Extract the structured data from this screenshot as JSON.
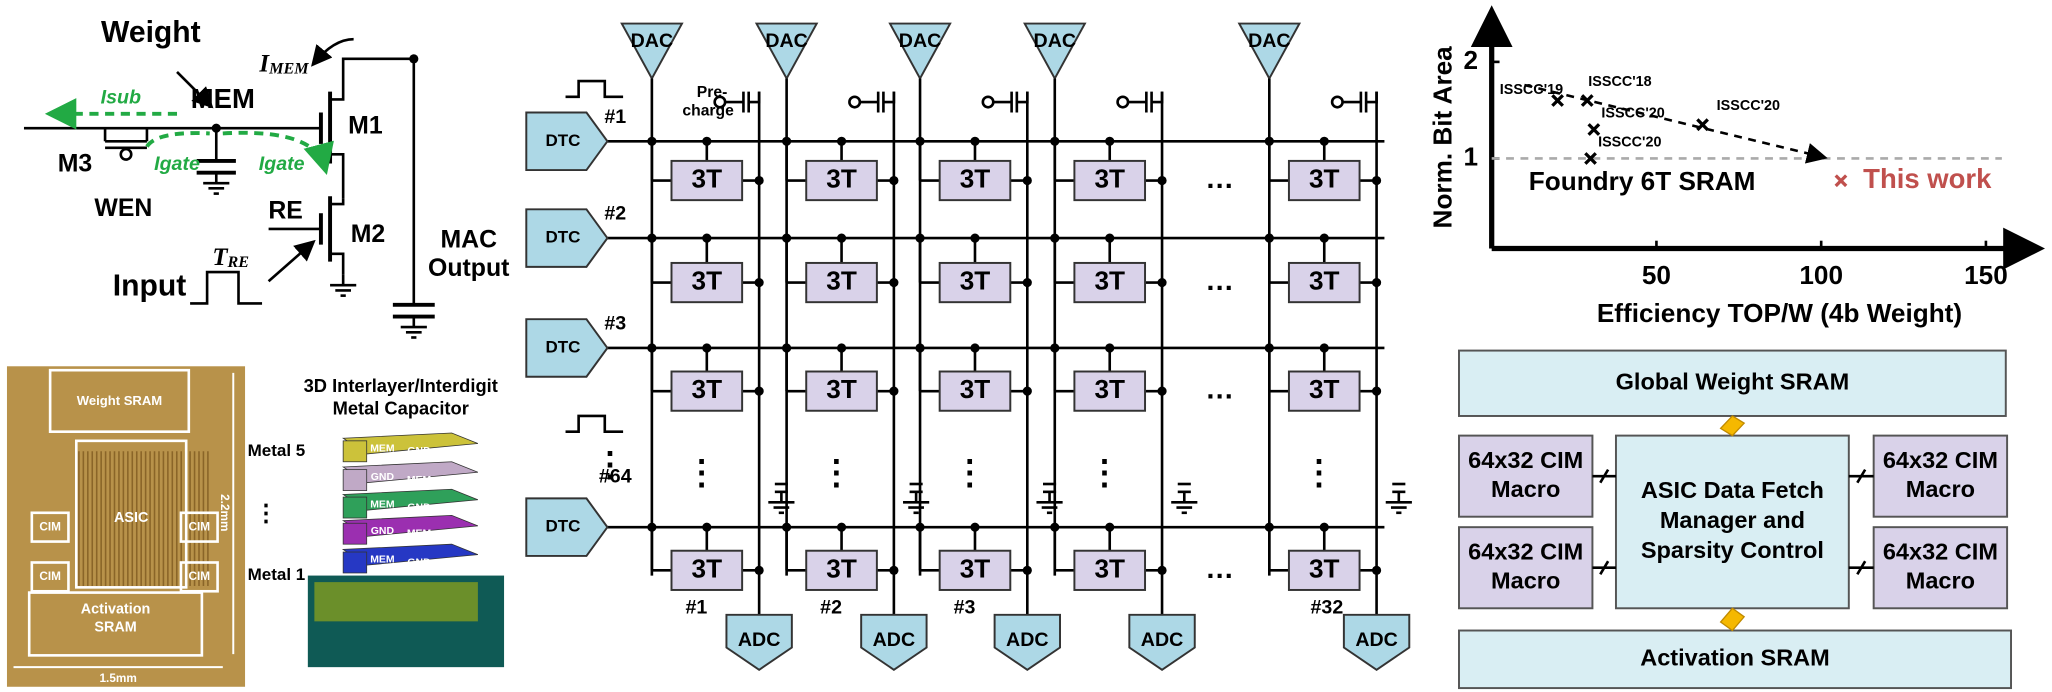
{
  "circuit": {
    "weight": "Weight",
    "mem": "MEM",
    "isub": "Isub",
    "m3": "M3",
    "igate": "Igate",
    "wen": "WEN",
    "re": "RE",
    "m1": "M1",
    "m2": "M2",
    "i_mem": {
      "main": "I",
      "sub": "MEM"
    },
    "t_re": {
      "main": "T",
      "sub": "RE"
    },
    "input": "Input",
    "mac_output": [
      "MAC",
      "Output"
    ]
  },
  "chip": {
    "weight_sram": "Weight SRAM",
    "asic": "ASIC",
    "cim": "CIM",
    "activation_sram": [
      "Activation",
      "SRAM"
    ],
    "width": "1.5mm",
    "height": "2.2mm",
    "metal_top": "Metal 5",
    "dots": "⋮",
    "metal_bottom": "Metal 1"
  },
  "capacitor": {
    "title": [
      "3D Interlayer/Interdigit",
      "Metal Capacitor"
    ],
    "mem": "MEM",
    "gnd": "GND"
  },
  "array": {
    "dac": "DAC",
    "dtc": "DTC",
    "adc": "ADC",
    "cell": "3T",
    "precharge": [
      "Pre-",
      "charge"
    ],
    "ellipsis": "…",
    "vdots": "⋮",
    "rows": [
      "#1",
      "#2",
      "#3",
      "#64"
    ],
    "columns": [
      "#1",
      "#2",
      "#3",
      "#32"
    ]
  },
  "chart_data": {
    "type": "scatter",
    "x_label": "Efficiency TOP/W (4b Weight)",
    "y_label": "Norm. Bit Area",
    "x": [
      20,
      29,
      31,
      30,
      64
    ],
    "values": [
      1.6,
      1.6,
      1.3,
      1.0,
      1.35
    ],
    "point_labels": [
      "ISSCC'19",
      "ISSCC'18",
      "ISSCC'20",
      "ISSCC'20",
      "ISSCC'20"
    ],
    "xlim": [
      0,
      160
    ],
    "ylim": [
      0,
      2.6
    ],
    "xticks": [
      50,
      100,
      150
    ],
    "yticks": [
      1,
      2
    ],
    "reference": {
      "label": "Foundry 6T SRAM",
      "value": 1
    },
    "this_work": {
      "label": "This work",
      "x": 106,
      "value": 0.77,
      "color": "#c0504d"
    }
  },
  "system": {
    "global": "Global Weight SRAM",
    "macro": [
      "64x32 CIM",
      "Macro"
    ],
    "asic": [
      "ASIC Data Fetch",
      "Manager and",
      "Sparsity Control"
    ],
    "activation": "Activation SRAM"
  }
}
